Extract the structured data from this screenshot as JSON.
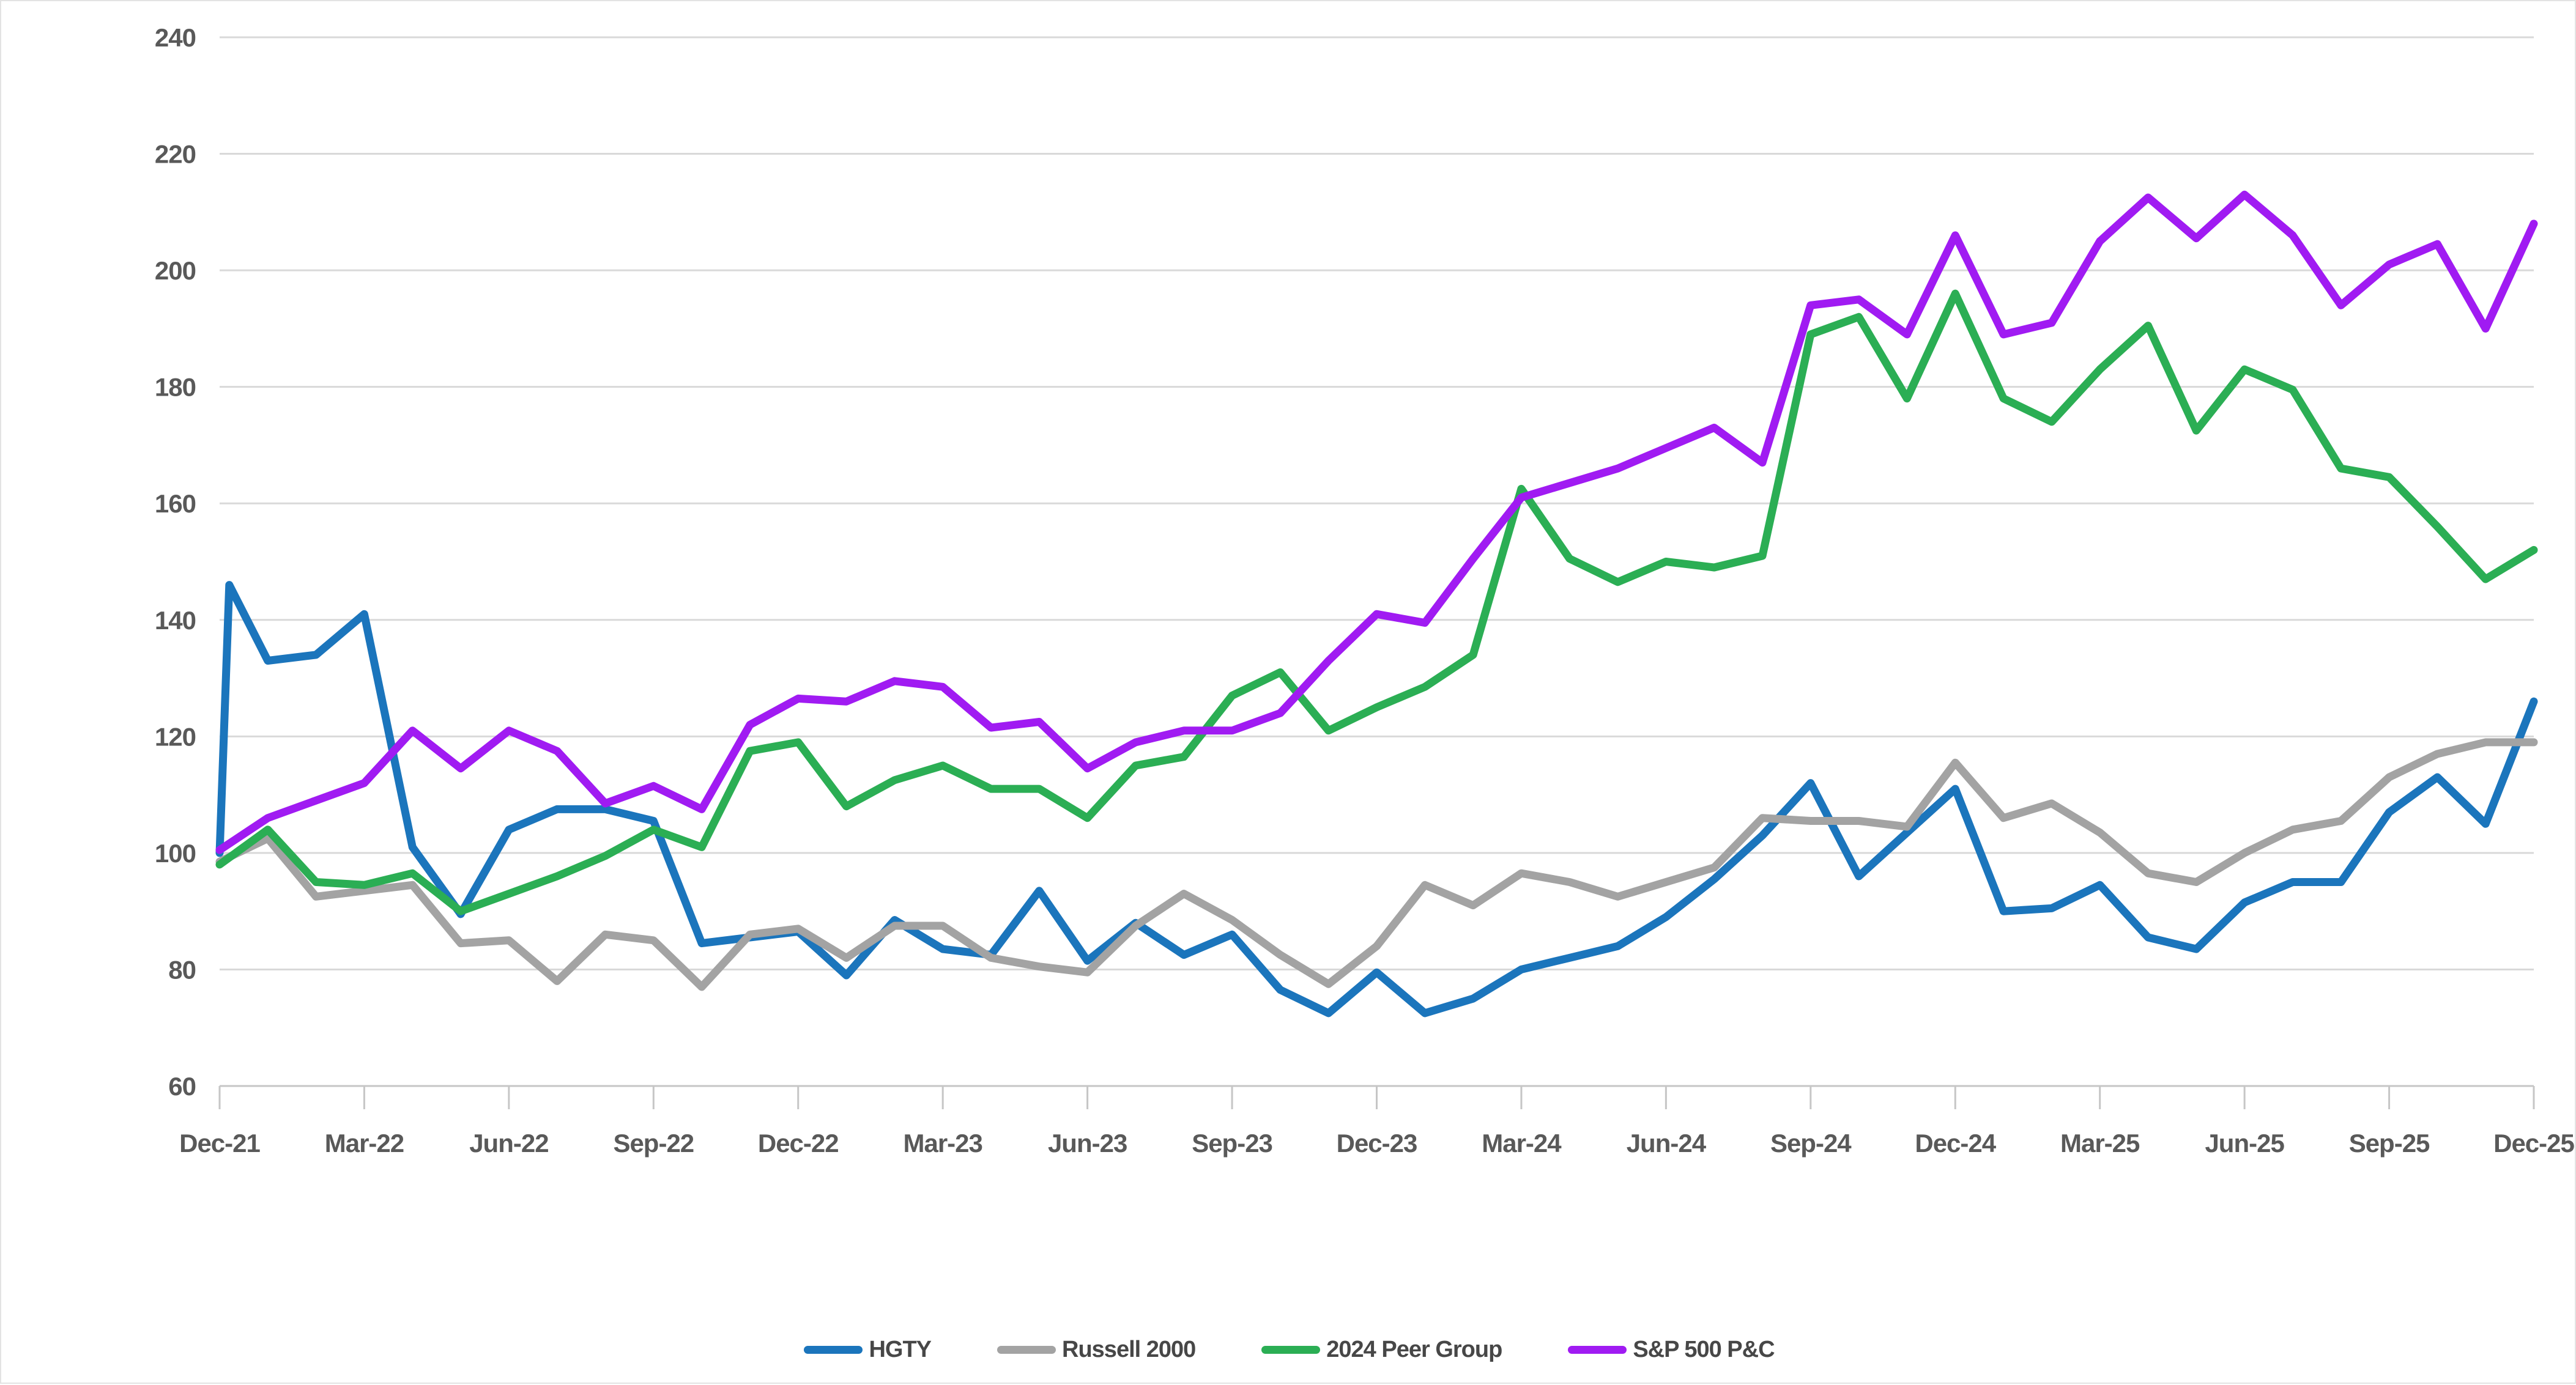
{
  "chart_data": {
    "type": "line",
    "title": "",
    "xlabel": "",
    "ylabel": "",
    "x_unit": "months since Dec-21 (monthly points, Dec-21 through Dec-25)",
    "ylim": [
      60,
      240
    ],
    "y_tick_step": 20,
    "y_tick_labels": [
      "240",
      "220",
      "200",
      "180",
      "160",
      "140",
      "120",
      "100",
      "80",
      "60"
    ],
    "x_tick_labels": [
      "Dec-21",
      "Mar-22",
      "Jun-22",
      "Sep-22",
      "Dec-22",
      "Mar-23",
      "Jun-23",
      "Sep-23",
      "Dec-23",
      "Mar-24",
      "Jun-24",
      "Sep-24",
      "Dec-24",
      "Mar-25",
      "Jun-25",
      "Sep-25",
      "Dec-25"
    ],
    "x_ticks_every_months": 3,
    "grid": "horizontal-only",
    "legend_position": "bottom-center",
    "index_base_value": 100,
    "series": [
      {
        "name": "HGTY",
        "color": "#1b75bc",
        "note": "starts at 100 then spikes to 146 within Dec-21 (near-vertical first segment)",
        "points": [
          [
            0,
            100
          ],
          [
            0.2,
            146
          ],
          [
            1,
            133
          ],
          [
            2,
            134
          ],
          [
            3,
            141
          ],
          [
            4,
            101
          ],
          [
            5,
            89.5
          ],
          [
            6,
            104
          ],
          [
            7,
            107.5
          ],
          [
            8,
            107.5
          ],
          [
            9,
            105.5
          ],
          [
            10,
            84.5
          ],
          [
            11,
            85.5
          ],
          [
            12,
            86.5
          ],
          [
            13,
            79
          ],
          [
            14,
            88.5
          ],
          [
            15,
            83.5
          ],
          [
            16,
            82.5
          ],
          [
            17,
            93.5
          ],
          [
            18,
            81.5
          ],
          [
            19,
            88
          ],
          [
            20,
            82.5
          ],
          [
            21,
            86
          ],
          [
            22,
            76.5
          ],
          [
            23,
            72.5
          ],
          [
            24,
            79.5
          ],
          [
            25,
            72.5
          ],
          [
            26,
            75
          ],
          [
            27,
            80
          ],
          [
            28,
            82
          ],
          [
            29,
            84
          ],
          [
            30,
            89
          ],
          [
            31,
            95.5
          ],
          [
            32,
            103
          ],
          [
            33,
            112
          ],
          [
            34,
            96
          ],
          [
            35,
            103.5
          ],
          [
            36,
            111
          ],
          [
            37,
            90
          ],
          [
            38,
            90.5
          ],
          [
            39,
            94.5
          ],
          [
            40,
            85.5
          ],
          [
            41,
            83.5
          ],
          [
            42,
            91.5
          ],
          [
            43,
            95
          ],
          [
            44,
            95
          ],
          [
            45,
            107
          ],
          [
            46,
            113
          ],
          [
            47,
            105
          ],
          [
            48,
            126
          ]
        ]
      },
      {
        "name": "Russell 2000",
        "color": "#a3a3a3",
        "points": [
          [
            0,
            98.5
          ],
          [
            1,
            102.5
          ],
          [
            2,
            92.5
          ],
          [
            3,
            93.5
          ],
          [
            4,
            94.5
          ],
          [
            5,
            84.5
          ],
          [
            6,
            85
          ],
          [
            7,
            78
          ],
          [
            8,
            86
          ],
          [
            9,
            85
          ],
          [
            10,
            77
          ],
          [
            11,
            86
          ],
          [
            12,
            87
          ],
          [
            13,
            82
          ],
          [
            14,
            87.5
          ],
          [
            15,
            87.5
          ],
          [
            16,
            82
          ],
          [
            17,
            80.5
          ],
          [
            18,
            79.5
          ],
          [
            19,
            87.5
          ],
          [
            20,
            93
          ],
          [
            21,
            88.5
          ],
          [
            22,
            82.5
          ],
          [
            23,
            77.5
          ],
          [
            24,
            84
          ],
          [
            25,
            94.5
          ],
          [
            26,
            91
          ],
          [
            27,
            96.5
          ],
          [
            28,
            95
          ],
          [
            29,
            92.5
          ],
          [
            30,
            95
          ],
          [
            31,
            97.5
          ],
          [
            32,
            106
          ],
          [
            33,
            105.5
          ],
          [
            34,
            105.5
          ],
          [
            35,
            104.5
          ],
          [
            36,
            115.5
          ],
          [
            37,
            106
          ],
          [
            38,
            108.5
          ],
          [
            39,
            103.5
          ],
          [
            40,
            96.5
          ],
          [
            41,
            95
          ],
          [
            42,
            100
          ],
          [
            43,
            104
          ],
          [
            44,
            105.5
          ],
          [
            45,
            113
          ],
          [
            46,
            117
          ],
          [
            47,
            119
          ],
          [
            48,
            119
          ]
        ]
      },
      {
        "name": "2024 Peer Group",
        "color": "#2bae54",
        "points": [
          [
            0,
            98
          ],
          [
            1,
            104
          ],
          [
            2,
            95
          ],
          [
            3,
            94.5
          ],
          [
            4,
            96.5
          ],
          [
            5,
            90
          ],
          [
            6,
            93
          ],
          [
            7,
            96
          ],
          [
            8,
            99.5
          ],
          [
            9,
            104
          ],
          [
            10,
            101
          ],
          [
            11,
            117.5
          ],
          [
            12,
            119
          ],
          [
            13,
            108
          ],
          [
            14,
            112.5
          ],
          [
            15,
            115
          ],
          [
            16,
            111
          ],
          [
            17,
            111
          ],
          [
            18,
            106
          ],
          [
            19,
            115
          ],
          [
            20,
            116.5
          ],
          [
            21,
            127
          ],
          [
            22,
            131
          ],
          [
            23,
            121
          ],
          [
            24,
            125
          ],
          [
            25,
            128.5
          ],
          [
            26,
            134
          ],
          [
            27,
            162.5
          ],
          [
            28,
            150.5
          ],
          [
            29,
            146.5
          ],
          [
            30,
            150
          ],
          [
            31,
            149
          ],
          [
            32,
            151
          ],
          [
            33,
            189
          ],
          [
            34,
            192
          ],
          [
            35,
            178
          ],
          [
            36,
            196
          ],
          [
            37,
            178
          ],
          [
            38,
            174
          ],
          [
            39,
            183
          ],
          [
            40,
            190.5
          ],
          [
            41,
            172.5
          ],
          [
            42,
            183
          ],
          [
            43,
            179.5
          ],
          [
            44,
            166
          ],
          [
            45,
            164.5
          ],
          [
            46,
            156
          ],
          [
            47,
            147
          ],
          [
            48,
            152
          ]
        ]
      },
      {
        "name": "S&P 500 P&C",
        "color": "#a01bf2",
        "points": [
          [
            0,
            100.5
          ],
          [
            1,
            106
          ],
          [
            2,
            109
          ],
          [
            3,
            112
          ],
          [
            4,
            121
          ],
          [
            5,
            114.5
          ],
          [
            6,
            121
          ],
          [
            7,
            117.5
          ],
          [
            8,
            108.5
          ],
          [
            9,
            111.5
          ],
          [
            10,
            107.5
          ],
          [
            11,
            122
          ],
          [
            12,
            126.5
          ],
          [
            13,
            126
          ],
          [
            14,
            129.5
          ],
          [
            15,
            128.5
          ],
          [
            16,
            121.5
          ],
          [
            17,
            122.5
          ],
          [
            18,
            114.5
          ],
          [
            19,
            119
          ],
          [
            20,
            121
          ],
          [
            21,
            121
          ],
          [
            22,
            124
          ],
          [
            23,
            133
          ],
          [
            24,
            141
          ],
          [
            25,
            139.5
          ],
          [
            26,
            150.5
          ],
          [
            27,
            161
          ],
          [
            28,
            163.5
          ],
          [
            29,
            166
          ],
          [
            30,
            169.5
          ],
          [
            31,
            173
          ],
          [
            32,
            167
          ],
          [
            33,
            194
          ],
          [
            34,
            195
          ],
          [
            35,
            189
          ],
          [
            36,
            206
          ],
          [
            37,
            189
          ],
          [
            38,
            191
          ],
          [
            39,
            205
          ],
          [
            40,
            212.5
          ],
          [
            41,
            205.5
          ],
          [
            42,
            213
          ],
          [
            43,
            206
          ],
          [
            44,
            194
          ],
          [
            45,
            201
          ],
          [
            46,
            204.5
          ],
          [
            47,
            190
          ],
          [
            48,
            208
          ]
        ]
      }
    ],
    "style": {
      "line_width": 13,
      "gridline_color": "#d9d9d9",
      "axis_line_color": "#c6c6c6",
      "tick_color": "#c6c6c6",
      "axis_label_color": "#595959",
      "background": "#ffffff"
    },
    "layout": {
      "plot_left": 357,
      "plot_top": 59,
      "plot_right": 4140,
      "plot_bottom": 1774,
      "x_months_total": 48,
      "tick_length": 38,
      "x_label_y": 1882,
      "y_label_right_edge": 318,
      "axis_font_size": 42
    }
  },
  "legend": {
    "items": [
      {
        "label": "HGTY",
        "color": "#1b75bc"
      },
      {
        "label": "Russell 2000",
        "color": "#a3a3a3"
      },
      {
        "label": "2024 Peer Group",
        "color": "#2bae54"
      },
      {
        "label": "S&P 500 P&C",
        "color": "#a01bf2"
      }
    ]
  }
}
